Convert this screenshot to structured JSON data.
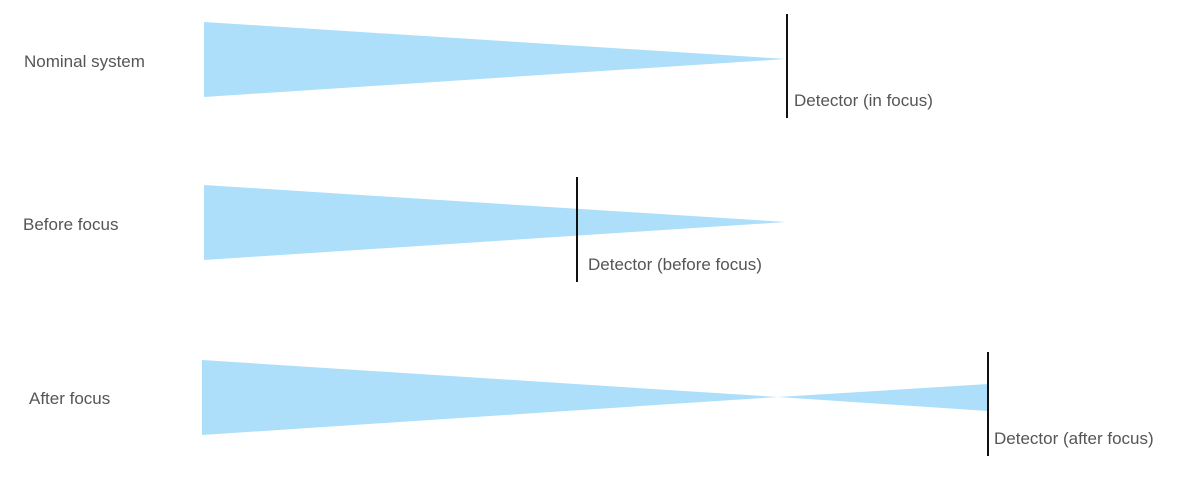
{
  "colors": {
    "beam": "#ADDFFB",
    "detector": "#111111",
    "text": "#555555"
  },
  "rows": [
    {
      "label": "Nominal system",
      "detector_label": "Detector (in focus)",
      "detector_position": "at focus"
    },
    {
      "label": "Before focus",
      "detector_label": "Detector (before focus)",
      "detector_position": "before focus"
    },
    {
      "label": "After focus",
      "detector_label": "Detector (after focus)",
      "detector_position": "after focus"
    }
  ]
}
